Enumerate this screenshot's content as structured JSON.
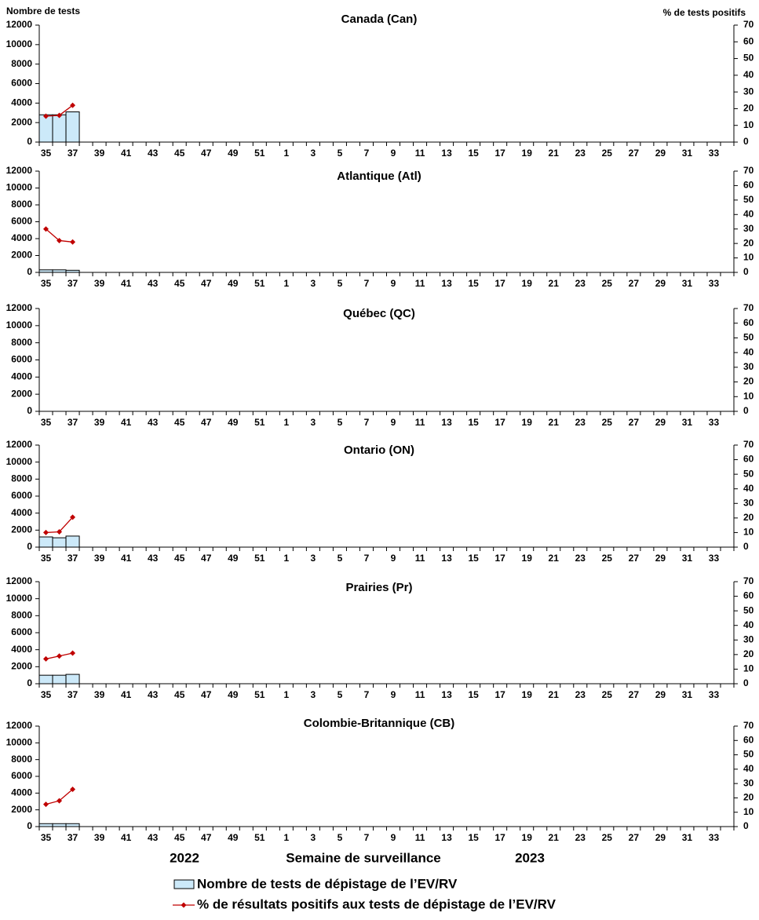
{
  "chart_data": [
    {
      "type": "bar_line",
      "title": "Canada (Can)",
      "ylabel": "Nombre de tests",
      "y2label": "% de tests positifs",
      "categories": [
        "35",
        null,
        "37",
        null,
        "39",
        null,
        "41",
        null,
        "43",
        null,
        "45",
        null,
        "47",
        null,
        "49",
        null,
        "51",
        null,
        "1",
        null,
        "3",
        null,
        "5",
        null,
        "7",
        null,
        "9",
        null,
        "11",
        null,
        "13",
        null,
        "15",
        null,
        "17",
        null,
        "19",
        null,
        "21",
        null,
        "23",
        null,
        "25",
        null,
        "27",
        null,
        "29",
        null,
        "31",
        null,
        "33",
        null
      ],
      "ylim": [
        0,
        12000
      ],
      "yticks": [
        0,
        2000,
        4000,
        6000,
        8000,
        10000,
        12000
      ],
      "y2lim": [
        0,
        70
      ],
      "y2ticks": [
        0,
        10,
        20,
        30,
        40,
        50,
        60,
        70
      ],
      "series": [
        {
          "type": "bar",
          "color": "#cce9f9",
          "values": [
            2800,
            2800,
            3100,
            null,
            null,
            null,
            null,
            null,
            null,
            null,
            null,
            null,
            null,
            null,
            null,
            null,
            null,
            null,
            null,
            null,
            null,
            null,
            null,
            null,
            null,
            null,
            null,
            null,
            null,
            null,
            null,
            null,
            null,
            null,
            null,
            null,
            null,
            null,
            null,
            null,
            null,
            null,
            null,
            null,
            null,
            null,
            null,
            null,
            null,
            null,
            null,
            null
          ]
        },
        {
          "type": "line",
          "axis": "y2",
          "color": "#c00000",
          "values": [
            15.5,
            16,
            22,
            null,
            null,
            null,
            null,
            null,
            null,
            null,
            null,
            null,
            null,
            null,
            null,
            null,
            null,
            null,
            null,
            null,
            null,
            null,
            null,
            null,
            null,
            null,
            null,
            null,
            null,
            null,
            null,
            null,
            null,
            null,
            null,
            null,
            null,
            null,
            null,
            null,
            null,
            null,
            null,
            null,
            null,
            null,
            null,
            null,
            null,
            null,
            null,
            null
          ]
        }
      ]
    },
    {
      "type": "bar_line",
      "title": "Atlantique (Atl)",
      "categories": [
        "35",
        null,
        "37",
        null,
        "39",
        null,
        "41",
        null,
        "43",
        null,
        "45",
        null,
        "47",
        null,
        "49",
        null,
        "51",
        null,
        "1",
        null,
        "3",
        null,
        "5",
        null,
        "7",
        null,
        "9",
        null,
        "11",
        null,
        "13",
        null,
        "15",
        null,
        "17",
        null,
        "19",
        null,
        "21",
        null,
        "23",
        null,
        "25",
        null,
        "27",
        null,
        "29",
        null,
        "31",
        null,
        "33",
        null
      ],
      "ylim": [
        0,
        12000
      ],
      "yticks": [
        0,
        2000,
        4000,
        6000,
        8000,
        10000,
        12000
      ],
      "y2lim": [
        0,
        70
      ],
      "y2ticks": [
        0,
        10,
        20,
        30,
        40,
        50,
        60,
        70
      ],
      "series": [
        {
          "type": "bar",
          "color": "#cce9f9",
          "values": [
            300,
            300,
            250,
            null,
            null,
            null,
            null,
            null,
            null,
            null,
            null,
            null,
            null,
            null,
            null,
            null,
            null,
            null,
            null,
            null,
            null,
            null,
            null,
            null,
            null,
            null,
            null,
            null,
            null,
            null,
            null,
            null,
            null,
            null,
            null,
            null,
            null,
            null,
            null,
            null,
            null,
            null,
            null,
            null,
            null,
            null,
            null,
            null,
            null,
            null,
            null,
            null
          ]
        },
        {
          "type": "line",
          "axis": "y2",
          "color": "#c00000",
          "values": [
            30,
            22,
            21,
            null,
            null,
            null,
            null,
            null,
            null,
            null,
            null,
            null,
            null,
            null,
            null,
            null,
            null,
            null,
            null,
            null,
            null,
            null,
            null,
            null,
            null,
            null,
            null,
            null,
            null,
            null,
            null,
            null,
            null,
            null,
            null,
            null,
            null,
            null,
            null,
            null,
            null,
            null,
            null,
            null,
            null,
            null,
            null,
            null,
            null,
            null,
            null,
            null
          ]
        }
      ]
    },
    {
      "type": "bar_line",
      "title": "Québec (QC)",
      "categories": [
        "35",
        null,
        "37",
        null,
        "39",
        null,
        "41",
        null,
        "43",
        null,
        "45",
        null,
        "47",
        null,
        "49",
        null,
        "51",
        null,
        "1",
        null,
        "3",
        null,
        "5",
        null,
        "7",
        null,
        "9",
        null,
        "11",
        null,
        "13",
        null,
        "15",
        null,
        "17",
        null,
        "19",
        null,
        "21",
        null,
        "23",
        null,
        "25",
        null,
        "27",
        null,
        "29",
        null,
        "31",
        null,
        "33",
        null
      ],
      "ylim": [
        0,
        12000
      ],
      "yticks": [
        0,
        2000,
        4000,
        6000,
        8000,
        10000,
        12000
      ],
      "y2lim": [
        0,
        70
      ],
      "y2ticks": [
        0,
        10,
        20,
        30,
        40,
        50,
        60,
        70
      ],
      "series": []
    },
    {
      "type": "bar_line",
      "title": "Ontario (ON)",
      "categories": [
        "35",
        null,
        "37",
        null,
        "39",
        null,
        "41",
        null,
        "43",
        null,
        "45",
        null,
        "47",
        null,
        "49",
        null,
        "51",
        null,
        "1",
        null,
        "3",
        null,
        "5",
        null,
        "7",
        null,
        "9",
        null,
        "11",
        null,
        "13",
        null,
        "15",
        null,
        "17",
        null,
        "19",
        null,
        "21",
        null,
        "23",
        null,
        "25",
        null,
        "27",
        null,
        "29",
        null,
        "31",
        null,
        "33",
        null
      ],
      "ylim": [
        0,
        12000
      ],
      "yticks": [
        0,
        2000,
        4000,
        6000,
        8000,
        10000,
        12000
      ],
      "y2lim": [
        0,
        70
      ],
      "y2ticks": [
        0,
        10,
        20,
        30,
        40,
        50,
        60,
        70
      ],
      "series": [
        {
          "type": "bar",
          "color": "#cce9f9",
          "values": [
            1200,
            1100,
            1300,
            null,
            null,
            null,
            null,
            null,
            null,
            null,
            null,
            null,
            null,
            null,
            null,
            null,
            null,
            null,
            null,
            null,
            null,
            null,
            null,
            null,
            null,
            null,
            null,
            null,
            null,
            null,
            null,
            null,
            null,
            null,
            null,
            null,
            null,
            null,
            null,
            null,
            null,
            null,
            null,
            null,
            null,
            null,
            null,
            null,
            null,
            null,
            null,
            null
          ]
        },
        {
          "type": "line",
          "axis": "y2",
          "color": "#c00000",
          "values": [
            10,
            10.5,
            20.5,
            null,
            null,
            null,
            null,
            null,
            null,
            null,
            null,
            null,
            null,
            null,
            null,
            null,
            null,
            null,
            null,
            null,
            null,
            null,
            null,
            null,
            null,
            null,
            null,
            null,
            null,
            null,
            null,
            null,
            null,
            null,
            null,
            null,
            null,
            null,
            null,
            null,
            null,
            null,
            null,
            null,
            null,
            null,
            null,
            null,
            null,
            null,
            null,
            null
          ]
        }
      ]
    },
    {
      "type": "bar_line",
      "title": "Prairies (Pr)",
      "categories": [
        "35",
        null,
        "37",
        null,
        "39",
        null,
        "41",
        null,
        "43",
        null,
        "45",
        null,
        "47",
        null,
        "49",
        null,
        "51",
        null,
        "1",
        null,
        "3",
        null,
        "5",
        null,
        "7",
        null,
        "9",
        null,
        "11",
        null,
        "13",
        null,
        "15",
        null,
        "17",
        null,
        "19",
        null,
        "21",
        null,
        "23",
        null,
        "25",
        null,
        "27",
        null,
        "29",
        null,
        "31",
        null,
        "33",
        null
      ],
      "ylim": [
        0,
        12000
      ],
      "yticks": [
        0,
        2000,
        4000,
        6000,
        8000,
        10000,
        12000
      ],
      "y2lim": [
        0,
        70
      ],
      "y2ticks": [
        0,
        10,
        20,
        30,
        40,
        50,
        60,
        70
      ],
      "series": [
        {
          "type": "bar",
          "color": "#cce9f9",
          "values": [
            1000,
            1000,
            1100,
            null,
            null,
            null,
            null,
            null,
            null,
            null,
            null,
            null,
            null,
            null,
            null,
            null,
            null,
            null,
            null,
            null,
            null,
            null,
            null,
            null,
            null,
            null,
            null,
            null,
            null,
            null,
            null,
            null,
            null,
            null,
            null,
            null,
            null,
            null,
            null,
            null,
            null,
            null,
            null,
            null,
            null,
            null,
            null,
            null,
            null,
            null,
            null,
            null
          ]
        },
        {
          "type": "line",
          "axis": "y2",
          "color": "#c00000",
          "values": [
            17,
            19,
            21,
            null,
            null,
            null,
            null,
            null,
            null,
            null,
            null,
            null,
            null,
            null,
            null,
            null,
            null,
            null,
            null,
            null,
            null,
            null,
            null,
            null,
            null,
            null,
            null,
            null,
            null,
            null,
            null,
            null,
            null,
            null,
            null,
            null,
            null,
            null,
            null,
            null,
            null,
            null,
            null,
            null,
            null,
            null,
            null,
            null,
            null,
            null,
            null,
            null
          ]
        }
      ]
    },
    {
      "type": "bar_line",
      "title": "Colombie-Britannique (CB)",
      "xlabel": "Semaine de surveillance",
      "year_labels": [
        "2022",
        "2023"
      ],
      "categories": [
        "35",
        null,
        "37",
        null,
        "39",
        null,
        "41",
        null,
        "43",
        null,
        "45",
        null,
        "47",
        null,
        "49",
        null,
        "51",
        null,
        "1",
        null,
        "3",
        null,
        "5",
        null,
        "7",
        null,
        "9",
        null,
        "11",
        null,
        "13",
        null,
        "15",
        null,
        "17",
        null,
        "19",
        null,
        "21",
        null,
        "23",
        null,
        "25",
        null,
        "27",
        null,
        "29",
        null,
        "31",
        null,
        "33",
        null
      ],
      "ylim": [
        0,
        12000
      ],
      "yticks": [
        0,
        2000,
        4000,
        6000,
        8000,
        10000,
        12000
      ],
      "y2lim": [
        0,
        70
      ],
      "y2ticks": [
        0,
        10,
        20,
        30,
        40,
        50,
        60,
        70
      ],
      "series": [
        {
          "type": "bar",
          "name": "Nombre de tests de dépistage de l’EV/RV",
          "color": "#cce9f9",
          "values": [
            350,
            350,
            350,
            null,
            null,
            null,
            null,
            null,
            null,
            null,
            null,
            null,
            null,
            null,
            null,
            null,
            null,
            null,
            null,
            null,
            null,
            null,
            null,
            null,
            null,
            null,
            null,
            null,
            null,
            null,
            null,
            null,
            null,
            null,
            null,
            null,
            null,
            null,
            null,
            null,
            null,
            null,
            null,
            null,
            null,
            null,
            null,
            null,
            null,
            null,
            null,
            null
          ]
        },
        {
          "type": "line",
          "axis": "y2",
          "name": "% de résultats positifs aux tests de dépistage de l’EV/RV",
          "color": "#c00000",
          "values": [
            15.5,
            18,
            26,
            null,
            null,
            null,
            null,
            null,
            null,
            null,
            null,
            null,
            null,
            null,
            null,
            null,
            null,
            null,
            null,
            null,
            null,
            null,
            null,
            null,
            null,
            null,
            null,
            null,
            null,
            null,
            null,
            null,
            null,
            null,
            null,
            null,
            null,
            null,
            null,
            null,
            null,
            null,
            null,
            null,
            null,
            null,
            null,
            null,
            null,
            null,
            null,
            null
          ]
        }
      ]
    }
  ]
}
